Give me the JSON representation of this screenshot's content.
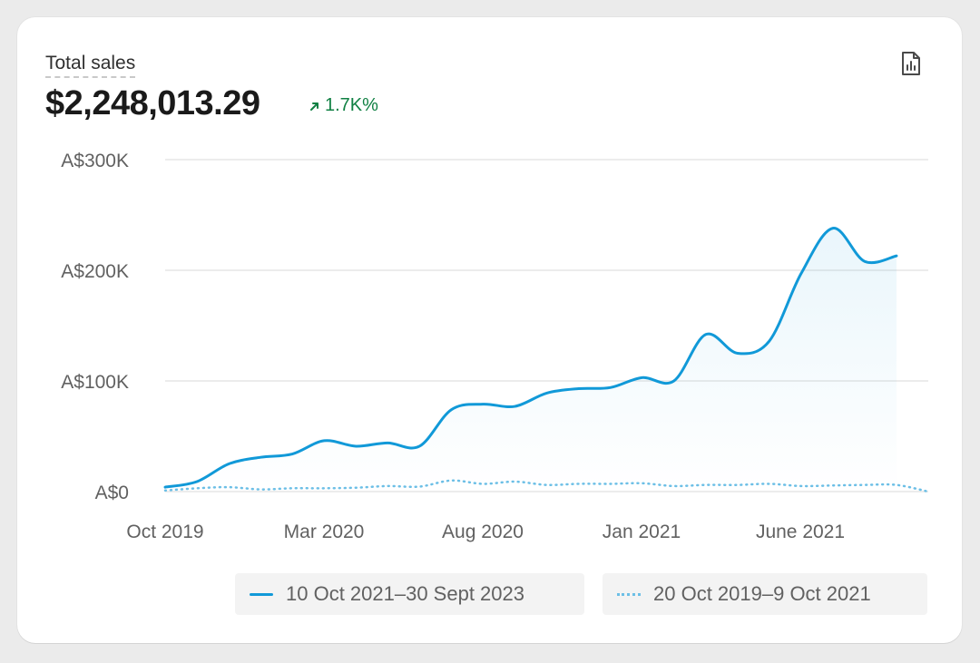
{
  "card": {
    "title": "Total sales",
    "total_value": "$2,248,013.29",
    "change": "1.7K%",
    "export_icon": "bar-chart-report-icon"
  },
  "colors": {
    "primary_line": "#1199d8",
    "comparison_line": "#6cbfe6",
    "positive_change": "#108043",
    "gridline": "#e6e6e6"
  },
  "chart_data": {
    "type": "line",
    "grid": true,
    "legend_placement": "bottom-right",
    "ylim": [
      0,
      300000
    ],
    "y_ticks": [
      {
        "value": 0,
        "label": "A$0"
      },
      {
        "value": 100000,
        "label": "A$100K"
      },
      {
        "value": 200000,
        "label": "A$200K"
      },
      {
        "value": 300000,
        "label": "A$300K"
      }
    ],
    "x_ticks": [
      "Oct 2019",
      "Mar 2020",
      "Aug 2020",
      "Jan 2021",
      "June 2021"
    ],
    "x": [
      "2019-10",
      "2019-11",
      "2019-12",
      "2020-01",
      "2020-02",
      "2020-03",
      "2020-04",
      "2020-05",
      "2020-06",
      "2020-07",
      "2020-08",
      "2020-09",
      "2020-10",
      "2020-11",
      "2020-12",
      "2021-01",
      "2021-02",
      "2021-03",
      "2021-04",
      "2021-05",
      "2021-06",
      "2021-07",
      "2021-08",
      "2021-09",
      "2021-10"
    ],
    "series": [
      {
        "name": "10 Oct 2021–30 Sept 2023",
        "style": "solid",
        "values": [
          4000,
          9000,
          25000,
          31000,
          34000,
          46000,
          41000,
          44000,
          41000,
          74000,
          79000,
          77000,
          89000,
          93000,
          94000,
          103000,
          100000,
          142000,
          125000,
          136000,
          197000,
          238000,
          208000,
          213000,
          null
        ]
      },
      {
        "name": "20 Oct 2019–9 Oct 2021",
        "style": "dotted",
        "values": [
          1000,
          3000,
          4000,
          2000,
          3000,
          3000,
          3500,
          5000,
          4500,
          10000,
          7000,
          9000,
          6000,
          7000,
          7000,
          7500,
          5000,
          6000,
          6000,
          7000,
          5000,
          5500,
          6000,
          6000,
          0
        ]
      }
    ]
  }
}
